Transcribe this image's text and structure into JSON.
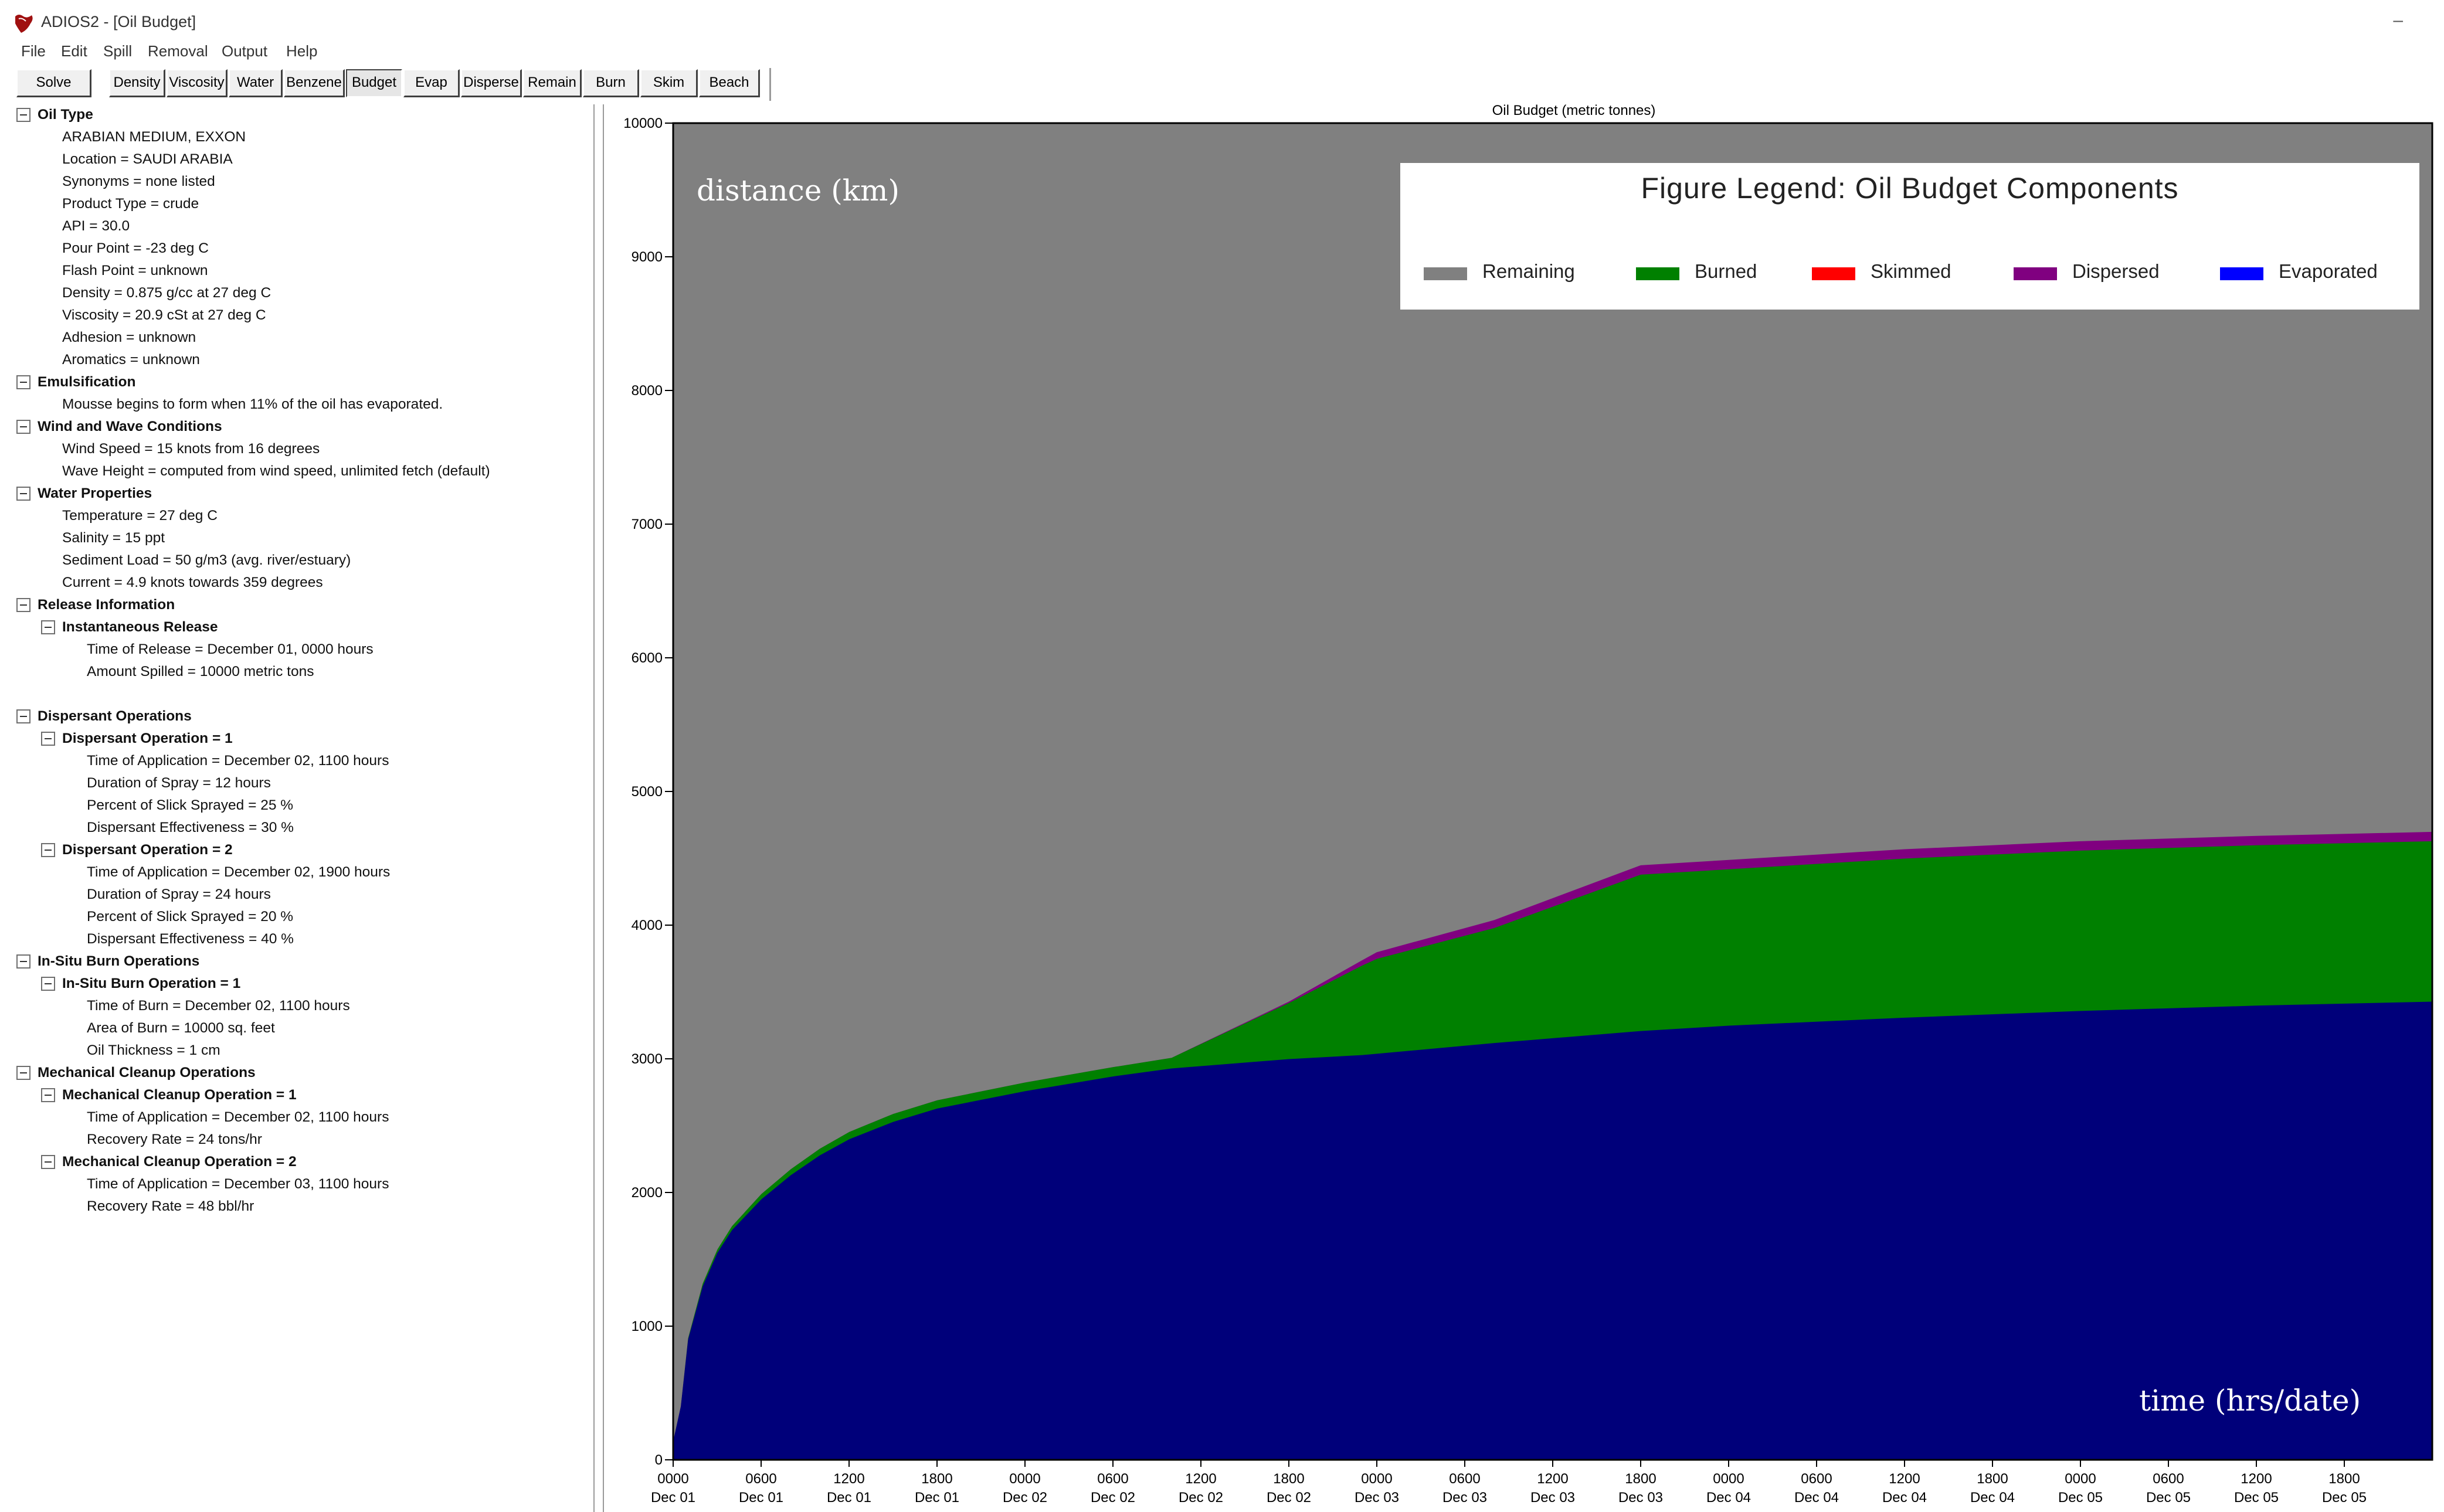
{
  "window": {
    "title": "ADIOS2 - [Oil Budget]",
    "minimize_glyph": "–",
    "app_icon": "adios-app-icon"
  },
  "menu": [
    "File",
    "Edit",
    "Spill",
    "Removal",
    "Output",
    "Help"
  ],
  "toolbar": {
    "solve": "Solve",
    "buttons": [
      "Density",
      "Viscosity",
      "Water",
      "Benzene",
      "Budget",
      "Evap",
      "Disperse",
      "Remain",
      "Burn",
      "Skim",
      "Beach"
    ],
    "active": "Budget"
  },
  "tree": {
    "oil_type": {
      "header": "Oil Type",
      "lines": [
        "ARABIAN MEDIUM, EXXON",
        "Location = SAUDI ARABIA",
        "Synonyms = none listed",
        "Product Type = crude",
        "API = 30.0",
        "Pour Point = -23 deg C",
        "Flash Point = unknown",
        "Density = 0.875 g/cc at 27 deg C",
        "Viscosity = 20.9 cSt at 27 deg C",
        "Adhesion = unknown",
        "Aromatics = unknown"
      ]
    },
    "emulsification": {
      "header": "Emulsification",
      "lines": [
        "Mousse begins to form when 11% of the oil has evaporated."
      ]
    },
    "wind": {
      "header": "Wind and Wave Conditions",
      "lines": [
        "Wind Speed = 15 knots from 16 degrees",
        "Wave Height = computed from wind speed, unlimited fetch (default)"
      ]
    },
    "water": {
      "header": "Water Properties",
      "lines": [
        "Temperature = 27 deg C",
        "Salinity = 15 ppt",
        "Sediment Load = 50 g/m3 (avg. river/estuary)",
        "Current = 4.9 knots towards 359 degrees"
      ]
    },
    "release": {
      "header": "Release Information",
      "sub": "Instantaneous Release",
      "lines": [
        "Time of Release = December 01, 0000 hours",
        "Amount Spilled = 10000 metric tons"
      ]
    },
    "dispersant": {
      "header": "Dispersant Operations",
      "op1": {
        "title": "Dispersant Operation = 1",
        "lines": [
          "Time of Application = December 02, 1100 hours",
          "Duration of Spray = 12 hours",
          "Percent of Slick Sprayed = 25 %",
          "Dispersant Effectiveness = 30 %"
        ]
      },
      "op2": {
        "title": "Dispersant Operation = 2",
        "lines": [
          "Time of Application = December 02, 1900 hours",
          "Duration of Spray = 24 hours",
          "Percent of Slick Sprayed = 20 %",
          "Dispersant Effectiveness = 40 %"
        ]
      }
    },
    "burn": {
      "header": "In-Situ Burn Operations",
      "op1": {
        "title": "In-Situ Burn Operation = 1",
        "lines": [
          "Time of Burn = December 02, 1100 hours",
          "Area of Burn = 10000 sq. feet",
          "Oil Thickness = 1 cm"
        ]
      }
    },
    "mech": {
      "header": "Mechanical Cleanup Operations",
      "op1": {
        "title": "Mechanical Cleanup Operation = 1",
        "lines": [
          "Time of Application = December 02, 1100 hours",
          "Recovery Rate = 24 tons/hr"
        ]
      },
      "op2": {
        "title": "Mechanical Cleanup Operation = 2",
        "lines": [
          "Time of Application = December 03, 1100 hours",
          "Recovery Rate = 48 bbl/hr"
        ]
      }
    }
  },
  "annotations": {
    "y": "distance (km)",
    "x": "time (hrs/date)"
  },
  "legend": {
    "title": "Figure Legend: Oil Budget Components",
    "items": [
      {
        "label": "Remaining",
        "color": "#808080"
      },
      {
        "label": "Burned",
        "color": "#008000"
      },
      {
        "label": "Skimmed",
        "color": "#ff0000"
      },
      {
        "label": "Dispersed",
        "color": "#800080"
      },
      {
        "label": "Evaporated",
        "color": "#0000ff"
      }
    ]
  },
  "chart_data": {
    "type": "area",
    "title": "Oil Budget (metric tonnes)",
    "ylim": [
      0,
      10000
    ],
    "yticks": [
      0,
      1000,
      2000,
      3000,
      4000,
      5000,
      6000,
      7000,
      8000,
      9000,
      10000
    ],
    "xlim": [
      0,
      120
    ],
    "xticks": [
      {
        "t": 0,
        "l1": "0000",
        "l2": "Dec 01"
      },
      {
        "t": 6,
        "l1": "0600",
        "l2": "Dec 01"
      },
      {
        "t": 12,
        "l1": "1200",
        "l2": "Dec 01"
      },
      {
        "t": 18,
        "l1": "1800",
        "l2": "Dec 01"
      },
      {
        "t": 24,
        "l1": "0000",
        "l2": "Dec 02"
      },
      {
        "t": 30,
        "l1": "0600",
        "l2": "Dec 02"
      },
      {
        "t": 36,
        "l1": "1200",
        "l2": "Dec 02"
      },
      {
        "t": 42,
        "l1": "1800",
        "l2": "Dec 02"
      },
      {
        "t": 48,
        "l1": "0000",
        "l2": "Dec 03"
      },
      {
        "t": 54,
        "l1": "0600",
        "l2": "Dec 03"
      },
      {
        "t": 60,
        "l1": "1200",
        "l2": "Dec 03"
      },
      {
        "t": 66,
        "l1": "1800",
        "l2": "Dec 03"
      },
      {
        "t": 72,
        "l1": "0000",
        "l2": "Dec 04"
      },
      {
        "t": 78,
        "l1": "0600",
        "l2": "Dec 04"
      },
      {
        "t": 84,
        "l1": "1200",
        "l2": "Dec 04"
      },
      {
        "t": 90,
        "l1": "1800",
        "l2": "Dec 04"
      },
      {
        "t": 96,
        "l1": "0000",
        "l2": "Dec 05"
      },
      {
        "t": 102,
        "l1": "0600",
        "l2": "Dec 05"
      },
      {
        "t": 108,
        "l1": "1200",
        "l2": "Dec 05"
      },
      {
        "t": 114,
        "l1": "1800",
        "l2": "Dec 05"
      }
    ],
    "x_hours": [
      0,
      0.5,
      1,
      2,
      3,
      4,
      6,
      8,
      10,
      12,
      15,
      18,
      24,
      30,
      34,
      42,
      47,
      48,
      56,
      66,
      72,
      84,
      96,
      108,
      120
    ],
    "series": [
      {
        "name": "Evaporated",
        "color": "#00007a",
        "values": [
          150,
          400,
          900,
          1300,
          1550,
          1720,
          1950,
          2130,
          2280,
          2400,
          2530,
          2630,
          2760,
          2870,
          2930,
          3000,
          3030,
          3040,
          3120,
          3210,
          3250,
          3310,
          3360,
          3400,
          3430
        ]
      },
      {
        "name": "Burned",
        "color": "#008000",
        "values": [
          0,
          0,
          10,
          20,
          25,
          30,
          40,
          45,
          50,
          55,
          60,
          62,
          65,
          70,
          80,
          420,
          670,
          710,
          860,
          1170,
          1170,
          1190,
          1200,
          1200,
          1200
        ]
      },
      {
        "name": "Dispersed",
        "color": "#800080",
        "values": [
          0,
          0,
          0,
          0,
          0,
          0,
          0,
          0,
          0,
          0,
          0,
          0,
          0,
          0,
          0,
          10,
          40,
          50,
          60,
          70,
          70,
          70,
          70,
          70,
          70
        ]
      },
      {
        "name": "Remaining",
        "color": "#808080",
        "values": [
          9850,
          9600,
          9090,
          8680,
          8425,
          8250,
          8010,
          7825,
          7670,
          7545,
          7410,
          7308,
          7175,
          7060,
          6990,
          6570,
          6260,
          6200,
          5960,
          5550,
          5510,
          5430,
          5370,
          5330,
          5300
        ]
      }
    ]
  }
}
